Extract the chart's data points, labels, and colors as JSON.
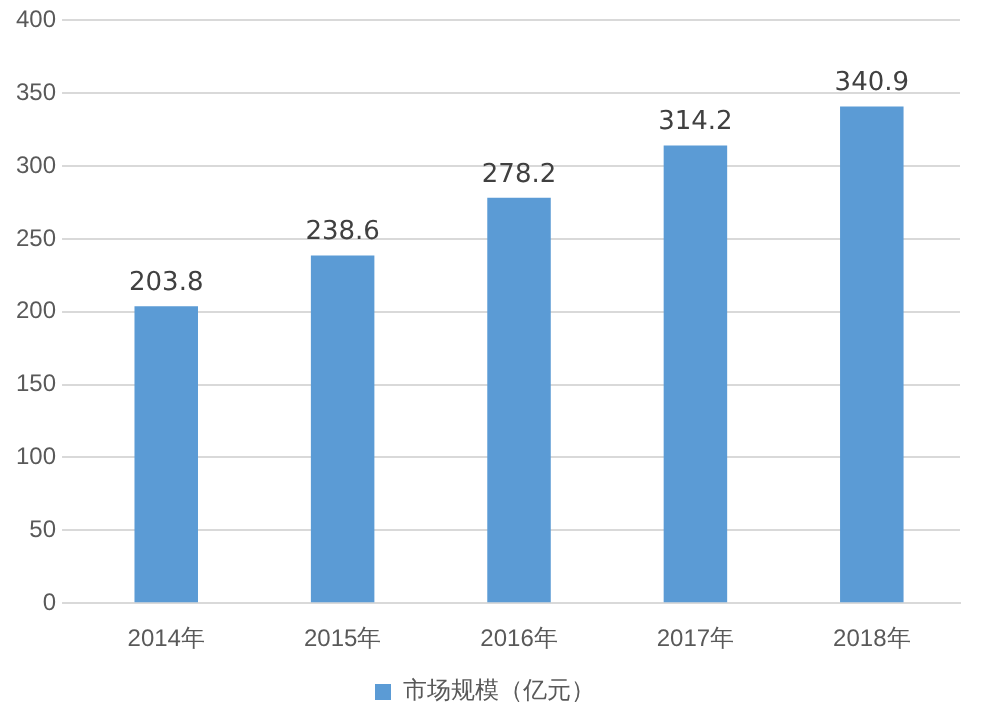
{
  "chart_data": {
    "type": "bar",
    "categories": [
      "2014年",
      "2015年",
      "2016年",
      "2017年",
      "2018年"
    ],
    "series": [
      {
        "name": "市场规模（亿元）",
        "color": "#5b9bd5",
        "values": [
          203.8,
          238.6,
          278.2,
          314.2,
          340.9
        ]
      }
    ],
    "ylim": [
      0,
      400
    ],
    "yticks": [
      0,
      50,
      100,
      150,
      200,
      250,
      300,
      350,
      400
    ],
    "grid": "y",
    "legend": "bottom",
    "data_labels": true
  }
}
